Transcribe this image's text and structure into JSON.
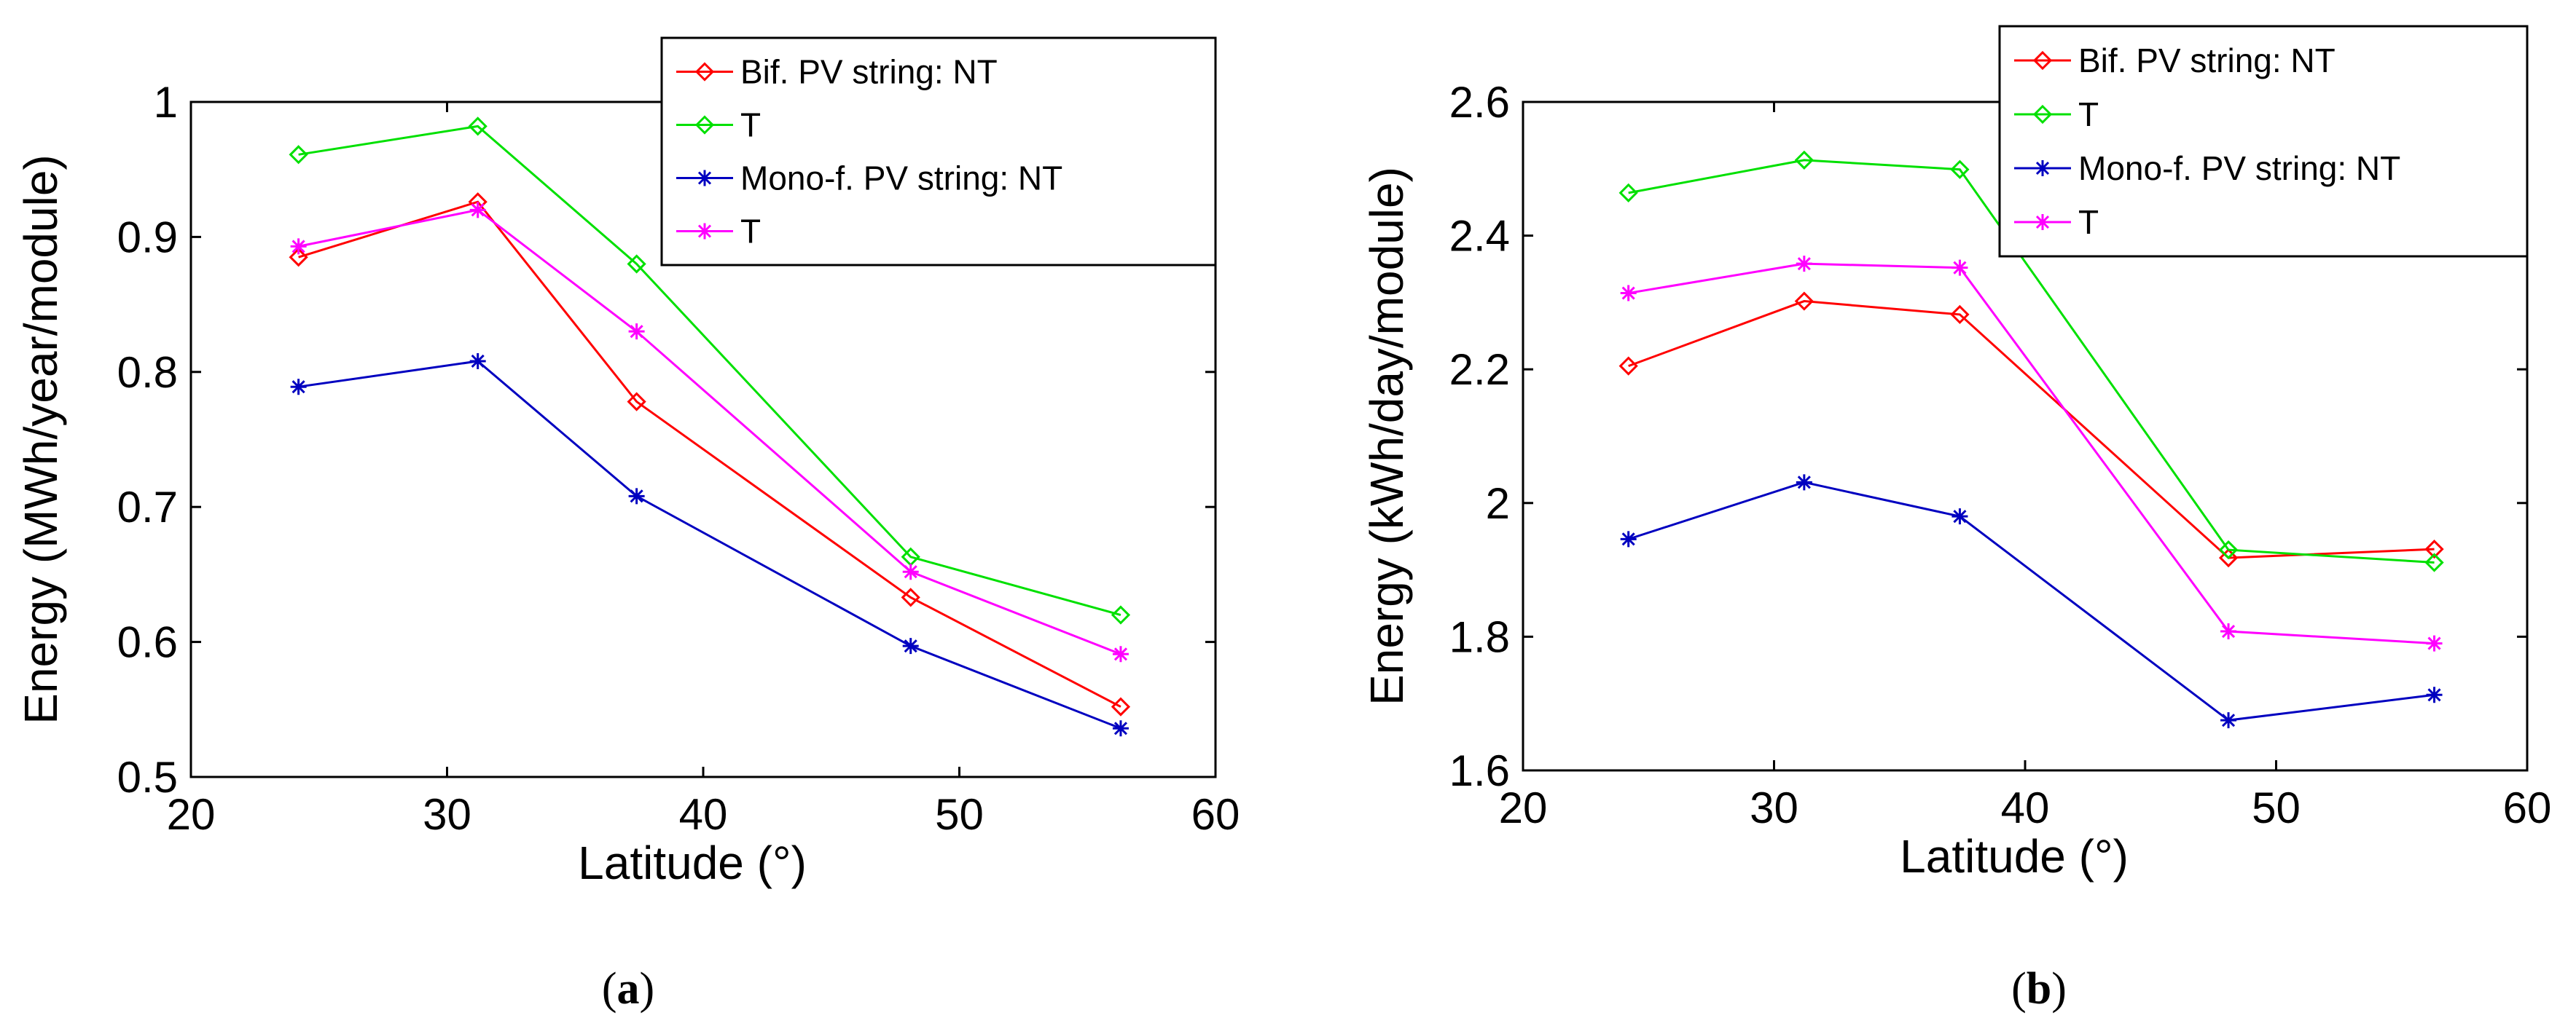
{
  "chart_data": [
    {
      "type": "line",
      "panel": "a",
      "caption": {
        "open": "(",
        "letter": "a",
        "close": ")"
      },
      "title": "",
      "xlabel": "Latitude (°)",
      "ylabel": "Energy (MWh/year/module)",
      "xlim": [
        20,
        60
      ],
      "ylim": [
        0.5,
        1.0
      ],
      "xticks": [
        20,
        30,
        40,
        50,
        60
      ],
      "xtick_labels": [
        "20",
        "30",
        "40",
        "50",
        "60"
      ],
      "yticks": [
        0.5,
        0.6,
        0.7,
        0.8,
        0.9,
        1.0
      ],
      "ytick_labels": [
        "0.5",
        "0.6",
        "0.7",
        "0.8",
        "0.9",
        "1"
      ],
      "grid": false,
      "legend_position": "top-right",
      "x": [
        24.2,
        31.2,
        37.4,
        48.1,
        56.3
      ],
      "series": [
        {
          "name": "Bif. PV string: NT",
          "color": "#ff0000",
          "marker": "diamond",
          "values": [
            0.885,
            0.926,
            0.778,
            0.633,
            0.552
          ]
        },
        {
          "name": "T",
          "color": "#00e000",
          "marker": "diamond",
          "values": [
            0.961,
            0.982,
            0.88,
            0.663,
            0.62
          ]
        },
        {
          "name": "Mono-f. PV string: NT",
          "color": "#0000c0",
          "marker": "star",
          "values": [
            0.789,
            0.808,
            0.708,
            0.597,
            0.536
          ]
        },
        {
          "name": "T",
          "color": "#ff00ff",
          "marker": "star",
          "values": [
            0.893,
            0.92,
            0.83,
            0.652,
            0.591
          ]
        }
      ]
    },
    {
      "type": "line",
      "panel": "b",
      "caption": {
        "open": "(",
        "letter": "b",
        "close": ")"
      },
      "title": "",
      "xlabel": "Latitude (°)",
      "ylabel": "Energy (kWh/day/module)",
      "xlim": [
        20,
        60
      ],
      "ylim": [
        1.6,
        2.6
      ],
      "xticks": [
        20,
        30,
        40,
        50,
        60
      ],
      "xtick_labels": [
        "20",
        "30",
        "40",
        "50",
        "60"
      ],
      "yticks": [
        1.6,
        1.8,
        2.0,
        2.2,
        2.4,
        2.6
      ],
      "ytick_labels": [
        "1.6",
        "1.8",
        "2",
        "2.2",
        "2.4",
        "2.6"
      ],
      "grid": false,
      "legend_position": "top-right",
      "x": [
        24.2,
        31.2,
        37.4,
        48.1,
        56.3
      ],
      "series": [
        {
          "name": "Bif. PV string: NT",
          "color": "#ff0000",
          "marker": "diamond",
          "values": [
            2.205,
            2.302,
            2.282,
            1.918,
            1.931
          ]
        },
        {
          "name": "T",
          "color": "#00e000",
          "marker": "diamond",
          "values": [
            2.464,
            2.513,
            2.499,
            1.93,
            1.911
          ]
        },
        {
          "name": "Mono-f. PV string: NT",
          "color": "#0000c0",
          "marker": "star",
          "values": [
            1.946,
            2.031,
            1.98,
            1.675,
            1.713
          ]
        },
        {
          "name": "T",
          "color": "#ff00ff",
          "marker": "star",
          "values": [
            2.314,
            2.358,
            2.352,
            1.808,
            1.79
          ]
        }
      ]
    }
  ]
}
